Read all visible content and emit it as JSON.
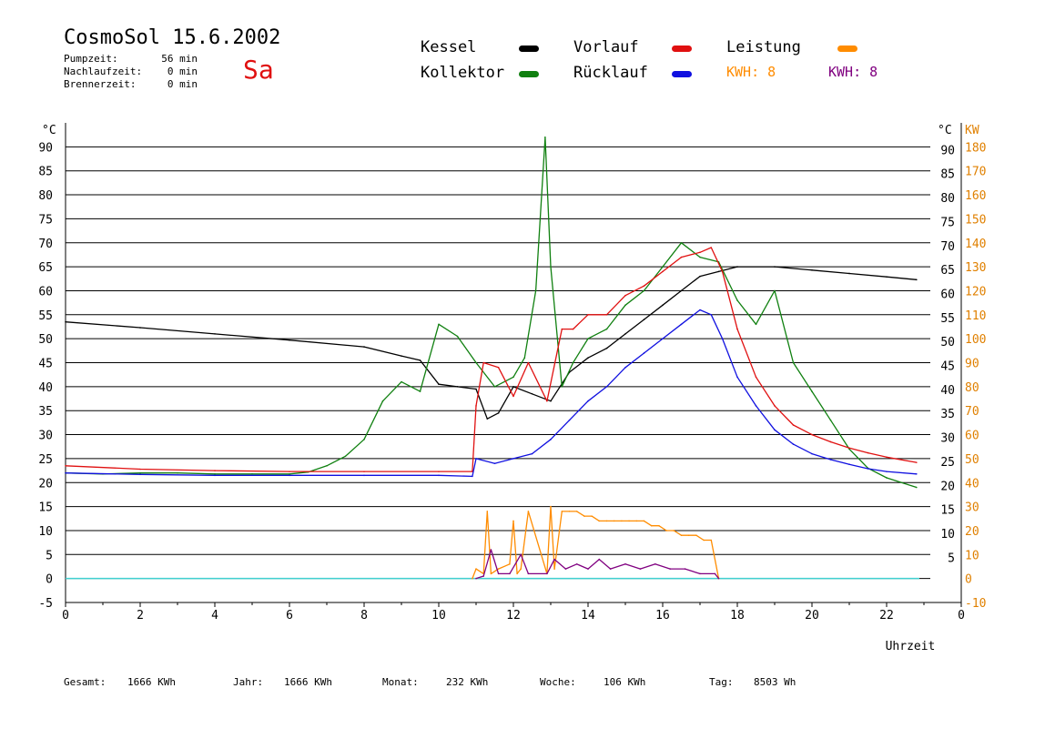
{
  "header": {
    "title": "CosmoSol 15.6.2002",
    "day": "Sa",
    "info": [
      {
        "label": "Pumpzeit:",
        "value": "56 min"
      },
      {
        "label": "Nachlaufzeit:",
        "value": "0 min"
      },
      {
        "label": "Brennerzeit:",
        "value": "0 min"
      }
    ]
  },
  "legend": {
    "kessel": {
      "label": "Kessel",
      "color": "#000000"
    },
    "kollektor": {
      "label": "Kollektor",
      "color": "#108010"
    },
    "vorlauf": {
      "label": "Vorlauf",
      "color": "#e01010"
    },
    "ruecklauf": {
      "label": "Rücklauf",
      "color": "#1010e0"
    },
    "leistung": {
      "label": "Leistung",
      "color": "#ff8c00"
    },
    "kwh1": {
      "label": "KWH: 8",
      "color": "#ff8c00"
    },
    "kwh2": {
      "label": "KWH: 8",
      "color": "#800080"
    }
  },
  "footer": [
    {
      "label": "Gesamt:",
      "value": "1666 KWh"
    },
    {
      "label": "Jahr:",
      "value": "1666 KWh"
    },
    {
      "label": "Monat:",
      "value": "232 KWh"
    },
    {
      "label": "Woche:",
      "value": "106 KWh"
    },
    {
      "label": "Tag:",
      "value": "8503 Wh"
    }
  ],
  "chart_data": {
    "type": "line",
    "xlabel": "Uhrzeit",
    "ylabel_left": "°C",
    "ylabel_right": "°C",
    "ylabel_power": "KW",
    "xlim": [
      0,
      24
    ],
    "ylim": [
      -5,
      95
    ],
    "power_lim": [
      -10,
      190
    ],
    "x_ticks": [
      "0",
      "2",
      "4",
      "6",
      "8",
      "10",
      "12",
      "14",
      "16",
      "18",
      "20",
      "22",
      "0"
    ],
    "y_ticks_left": [
      "-5",
      "0",
      "5",
      "10",
      "15",
      "20",
      "25",
      "30",
      "35",
      "40",
      "45",
      "50",
      "55",
      "60",
      "65",
      "70",
      "75",
      "80",
      "85",
      "90"
    ],
    "y_ticks_right": [
      "5",
      "10",
      "15",
      "20",
      "25",
      "30",
      "35",
      "40",
      "45",
      "50",
      "55",
      "60",
      "65",
      "70",
      "75",
      "80",
      "85",
      "90"
    ],
    "y_ticks_power": [
      "-10",
      "0",
      "10",
      "20",
      "30",
      "40",
      "50",
      "60",
      "70",
      "80",
      "90",
      "100",
      "110",
      "120",
      "130",
      "140",
      "150",
      "160",
      "170",
      "180"
    ],
    "grid": true,
    "series": [
      {
        "name": "Kessel",
        "color": "#000000",
        "x": [
          0,
          2,
          4,
          6,
          8,
          9,
          9.5,
          10,
          10.5,
          11,
          11.3,
          11.6,
          12,
          12.5,
          13,
          13.5,
          14,
          14.5,
          15,
          15.5,
          16,
          16.5,
          17,
          17.5,
          18,
          19,
          20,
          21,
          22,
          22.8
        ],
        "y": [
          53.5,
          52.3,
          51,
          49.7,
          48.3,
          46.4,
          45.5,
          40.5,
          40,
          39.5,
          33.3,
          34.5,
          40,
          38.5,
          37,
          43,
          46,
          48,
          51,
          54,
          57,
          60,
          63,
          64,
          65,
          65,
          64.3,
          63.6,
          62.9,
          62.3
        ]
      },
      {
        "name": "Kollektor",
        "color": "#108010",
        "x": [
          0,
          1,
          2,
          3,
          4,
          5,
          6,
          6.5,
          7,
          7.5,
          8,
          8.5,
          9,
          9.5,
          10,
          10.5,
          11,
          11.5,
          12,
          12.3,
          12.6,
          12.85,
          13,
          13.3,
          13.6,
          14,
          14.5,
          15,
          15.5,
          16,
          16.5,
          17,
          17.5,
          18,
          18.5,
          19,
          19.5,
          20,
          20.5,
          21,
          21.5,
          22,
          22.8
        ],
        "y": [
          22,
          21.8,
          22,
          22,
          21.8,
          21.8,
          21.8,
          22.2,
          23.5,
          25.5,
          29,
          37,
          41,
          39,
          53,
          50.5,
          45,
          40,
          42,
          46,
          60,
          92,
          65,
          40,
          45,
          50,
          52,
          57,
          60,
          65,
          70,
          67,
          66,
          58,
          53,
          60,
          45,
          39,
          33,
          27,
          23,
          21,
          19
        ]
      },
      {
        "name": "Vorlauf",
        "color": "#e01010",
        "x": [
          0,
          2,
          4,
          6,
          8,
          10,
          10.9,
          11,
          11.2,
          11.6,
          12,
          12.4,
          12.9,
          13.3,
          13.6,
          14,
          14.5,
          15,
          15.5,
          16,
          16.5,
          17,
          17.3,
          17.6,
          18,
          18.5,
          19,
          19.5,
          20,
          20.5,
          21,
          21.5,
          22,
          22.8
        ],
        "y": [
          23.5,
          22.8,
          22.5,
          22.3,
          22.3,
          22.3,
          22.3,
          36,
          45,
          44,
          38,
          45,
          37,
          52,
          52,
          55,
          55,
          59,
          61,
          64,
          67,
          68,
          69,
          64,
          52,
          42,
          36,
          32,
          30,
          28.5,
          27.2,
          26.2,
          25.3,
          24.2
        ]
      },
      {
        "name": "Rücklauf",
        "color": "#1010e0",
        "x": [
          0,
          2,
          4,
          6,
          8,
          10,
          10.9,
          11,
          11.5,
          12,
          12.5,
          13,
          13.5,
          14,
          14.5,
          15,
          15.5,
          16,
          16.5,
          17,
          17.3,
          17.6,
          18,
          18.5,
          19,
          19.5,
          20,
          20.5,
          21,
          21.5,
          22,
          22.8
        ],
        "y": [
          22,
          21.7,
          21.5,
          21.5,
          21.5,
          21.5,
          21.3,
          25,
          24,
          25,
          26,
          29,
          33,
          37,
          40,
          44,
          47,
          50,
          53,
          56,
          55,
          50,
          42,
          36,
          31,
          28,
          26,
          24.8,
          23.8,
          22.9,
          22.3,
          21.8
        ]
      },
      {
        "name": "Leistung",
        "color": "#ff8c00",
        "x": [
          10.9,
          11,
          11.2,
          11.3,
          11.4,
          11.6,
          11.9,
          12,
          12.1,
          12.2,
          12.4,
          12.9,
          13,
          13.1,
          13.3,
          13.5,
          13.7,
          13.9,
          14.1,
          14.3,
          14.5,
          14.7,
          14.9,
          15.1,
          15.3,
          15.5,
          15.7,
          15.9,
          16.1,
          16.3,
          16.5,
          16.7,
          16.9,
          17.1,
          17.3,
          17.5
        ],
        "y": [
          0,
          2,
          1,
          14,
          1,
          2,
          3,
          12,
          1,
          2,
          14,
          1,
          15,
          2,
          14,
          14,
          14,
          13,
          13,
          12,
          12,
          12,
          12,
          12,
          12,
          12,
          11,
          11,
          10,
          10,
          9,
          9,
          9,
          8,
          8,
          0
        ]
      },
      {
        "name": "KWH",
        "color": "#800080",
        "x": [
          11,
          11.2,
          11.4,
          11.6,
          11.9,
          12.2,
          12.4,
          12.9,
          13.1,
          13.4,
          13.7,
          14,
          14.3,
          14.6,
          15,
          15.4,
          15.8,
          16.2,
          16.6,
          17,
          17.4,
          17.5
        ],
        "y": [
          0,
          0.5,
          6,
          1,
          1,
          5,
          1,
          1,
          4,
          2,
          3,
          2,
          4,
          2,
          3,
          2,
          3,
          2,
          2,
          1,
          1,
          0
        ]
      }
    ],
    "baseline": {
      "name": "0 KW",
      "color": "#40d0d0",
      "y": 0
    }
  }
}
